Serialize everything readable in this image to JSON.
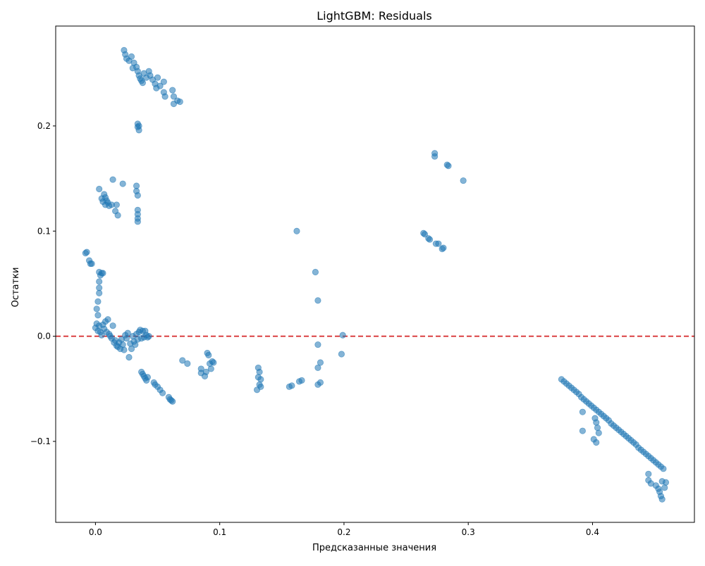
{
  "chart_data": {
    "type": "scatter",
    "title": "LightGBM: Residuals",
    "xlabel": "Предсказанные значения",
    "ylabel": "Остатки",
    "xlim": [
      -0.032,
      0.482
    ],
    "ylim": [
      -0.177,
      0.295
    ],
    "xticks": [
      0.0,
      0.1,
      0.2,
      0.3,
      0.4
    ],
    "xtick_labels": [
      "0.0",
      "0.1",
      "0.2",
      "0.3",
      "0.4"
    ],
    "yticks": [
      -0.1,
      0.0,
      0.1,
      0.2
    ],
    "ytick_labels": [
      "−0.1",
      "0.0",
      "0.1",
      "0.2"
    ],
    "grid": false,
    "reference_line": {
      "y": 0.0,
      "color": "#d62728",
      "style": "dashed"
    },
    "series": [
      {
        "color": "#1f77b4",
        "opacity": 0.55,
        "points": [
          [
            0.023,
            0.272
          ],
          [
            0.024,
            0.268
          ],
          [
            0.025,
            0.264
          ],
          [
            0.027,
            0.262
          ],
          [
            0.029,
            0.266
          ],
          [
            0.031,
            0.26
          ],
          [
            0.033,
            0.256
          ],
          [
            0.034,
            0.252
          ],
          [
            0.035,
            0.248
          ],
          [
            0.036,
            0.245
          ],
          [
            0.037,
            0.243
          ],
          [
            0.039,
            0.25
          ],
          [
            0.041,
            0.246
          ],
          [
            0.043,
            0.252
          ],
          [
            0.044,
            0.248
          ],
          [
            0.046,
            0.244
          ],
          [
            0.048,
            0.24
          ],
          [
            0.049,
            0.236
          ],
          [
            0.05,
            0.246
          ],
          [
            0.052,
            0.238
          ],
          [
            0.055,
            0.242
          ],
          [
            0.055,
            0.232
          ],
          [
            0.056,
            0.228
          ],
          [
            0.062,
            0.234
          ],
          [
            0.063,
            0.228
          ],
          [
            0.063,
            0.221
          ],
          [
            0.066,
            0.224
          ],
          [
            0.068,
            0.223
          ],
          [
            0.03,
            0.255
          ],
          [
            0.038,
            0.241
          ],
          [
            0.034,
            0.202
          ],
          [
            0.034,
            0.199
          ],
          [
            0.035,
            0.196
          ],
          [
            0.035,
            0.2
          ],
          [
            0.003,
            0.14
          ],
          [
            0.005,
            0.131
          ],
          [
            0.006,
            0.128
          ],
          [
            0.007,
            0.135
          ],
          [
            0.008,
            0.132
          ],
          [
            0.008,
            0.125
          ],
          [
            0.009,
            0.129
          ],
          [
            0.01,
            0.127
          ],
          [
            0.011,
            0.124
          ],
          [
            0.013,
            0.125
          ],
          [
            0.014,
            0.149
          ],
          [
            0.017,
            0.125
          ],
          [
            0.016,
            0.119
          ],
          [
            0.018,
            0.115
          ],
          [
            0.022,
            0.145
          ],
          [
            0.033,
            0.143
          ],
          [
            0.033,
            0.138
          ],
          [
            0.034,
            0.134
          ],
          [
            0.034,
            0.12
          ],
          [
            0.034,
            0.116
          ],
          [
            0.034,
            0.112
          ],
          [
            0.034,
            0.109
          ],
          [
            -0.008,
            0.079
          ],
          [
            -0.007,
            0.08
          ],
          [
            -0.005,
            0.072
          ],
          [
            -0.004,
            0.069
          ],
          [
            -0.003,
            0.069
          ],
          [
            0.003,
            0.061
          ],
          [
            0.004,
            0.058
          ],
          [
            0.005,
            0.06
          ],
          [
            0.006,
            0.06
          ],
          [
            0.003,
            0.052
          ],
          [
            0.003,
            0.046
          ],
          [
            0.003,
            0.041
          ],
          [
            0.002,
            0.033
          ],
          [
            0.001,
            0.026
          ],
          [
            0.002,
            0.02
          ],
          [
            0.001,
            0.012
          ],
          [
            0.0,
            0.008
          ],
          [
            0.002,
            0.005
          ],
          [
            0.003,
            0.01
          ],
          [
            0.004,
            0.004
          ],
          [
            0.005,
            0.001
          ],
          [
            0.006,
            0.011
          ],
          [
            0.007,
            0.007
          ],
          [
            0.008,
            0.014
          ],
          [
            0.009,
            0.004
          ],
          [
            0.01,
            0.016
          ],
          [
            0.011,
            0.002
          ],
          [
            0.012,
            0.0
          ],
          [
            0.013,
            -0.002
          ],
          [
            0.014,
            0.01
          ],
          [
            0.015,
            -0.006
          ],
          [
            0.016,
            -0.004
          ],
          [
            0.017,
            -0.009
          ],
          [
            0.018,
            -0.01
          ],
          [
            0.019,
            -0.006
          ],
          [
            0.02,
            -0.012
          ],
          [
            0.021,
            -0.003
          ],
          [
            0.022,
            -0.008
          ],
          [
            0.023,
            -0.013
          ],
          [
            0.024,
            0.001
          ],
          [
            0.025,
            -0.002
          ],
          [
            0.026,
            0.003
          ],
          [
            0.027,
            -0.02
          ],
          [
            0.028,
            -0.007
          ],
          [
            0.029,
            -0.012
          ],
          [
            0.03,
            0.0
          ],
          [
            0.031,
            -0.005
          ],
          [
            0.032,
            -0.008
          ],
          [
            0.033,
            0.002
          ],
          [
            0.034,
            -0.003
          ],
          [
            0.035,
            0.004
          ],
          [
            0.036,
            0.006
          ],
          [
            0.037,
            -0.002
          ],
          [
            0.038,
            0.005
          ],
          [
            0.039,
            -0.001
          ],
          [
            0.04,
            0.005
          ],
          [
            0.041,
            0.001
          ],
          [
            0.042,
            -0.001
          ],
          [
            0.043,
            0.0
          ],
          [
            0.037,
            -0.034
          ],
          [
            0.038,
            -0.036
          ],
          [
            0.039,
            -0.038
          ],
          [
            0.04,
            -0.04
          ],
          [
            0.041,
            -0.042
          ],
          [
            0.042,
            -0.039
          ],
          [
            0.047,
            -0.044
          ],
          [
            0.048,
            -0.046
          ],
          [
            0.05,
            -0.048
          ],
          [
            0.052,
            -0.051
          ],
          [
            0.054,
            -0.054
          ],
          [
            0.059,
            -0.058
          ],
          [
            0.06,
            -0.06
          ],
          [
            0.061,
            -0.061
          ],
          [
            0.062,
            -0.062
          ],
          [
            0.07,
            -0.023
          ],
          [
            0.074,
            -0.026
          ],
          [
            0.085,
            -0.031
          ],
          [
            0.085,
            -0.035
          ],
          [
            0.088,
            -0.038
          ],
          [
            0.089,
            -0.034
          ],
          [
            0.09,
            -0.016
          ],
          [
            0.091,
            -0.018
          ],
          [
            0.092,
            -0.026
          ],
          [
            0.093,
            -0.031
          ],
          [
            0.094,
            -0.024
          ],
          [
            0.095,
            -0.025
          ],
          [
            0.13,
            -0.051
          ],
          [
            0.131,
            -0.03
          ],
          [
            0.131,
            -0.039
          ],
          [
            0.132,
            -0.046
          ],
          [
            0.132,
            -0.034
          ],
          [
            0.133,
            -0.041
          ],
          [
            0.133,
            -0.048
          ],
          [
            0.156,
            -0.048
          ],
          [
            0.158,
            -0.047
          ],
          [
            0.162,
            0.1
          ],
          [
            0.164,
            -0.043
          ],
          [
            0.166,
            -0.042
          ],
          [
            0.177,
            0.061
          ],
          [
            0.179,
            -0.008
          ],
          [
            0.179,
            0.034
          ],
          [
            0.179,
            -0.03
          ],
          [
            0.179,
            -0.046
          ],
          [
            0.181,
            -0.025
          ],
          [
            0.181,
            -0.044
          ],
          [
            0.198,
            -0.017
          ],
          [
            0.199,
            0.001
          ],
          [
            0.264,
            0.098
          ],
          [
            0.265,
            0.097
          ],
          [
            0.268,
            0.093
          ],
          [
            0.269,
            0.092
          ],
          [
            0.273,
            0.174
          ],
          [
            0.273,
            0.171
          ],
          [
            0.274,
            0.088
          ],
          [
            0.276,
            0.088
          ],
          [
            0.279,
            0.083
          ],
          [
            0.28,
            0.084
          ],
          [
            0.283,
            0.163
          ],
          [
            0.284,
            0.162
          ],
          [
            0.296,
            0.148
          ],
          [
            0.375,
            -0.041
          ],
          [
            0.377,
            -0.043
          ],
          [
            0.379,
            -0.045
          ],
          [
            0.381,
            -0.047
          ],
          [
            0.383,
            -0.049
          ],
          [
            0.385,
            -0.051
          ],
          [
            0.387,
            -0.053
          ],
          [
            0.389,
            -0.055
          ],
          [
            0.391,
            -0.058
          ],
          [
            0.393,
            -0.06
          ],
          [
            0.395,
            -0.062
          ],
          [
            0.397,
            -0.064
          ],
          [
            0.399,
            -0.066
          ],
          [
            0.401,
            -0.068
          ],
          [
            0.403,
            -0.07
          ],
          [
            0.405,
            -0.072
          ],
          [
            0.407,
            -0.074
          ],
          [
            0.409,
            -0.076
          ],
          [
            0.411,
            -0.078
          ],
          [
            0.413,
            -0.08
          ],
          [
            0.415,
            -0.083
          ],
          [
            0.417,
            -0.085
          ],
          [
            0.419,
            -0.087
          ],
          [
            0.421,
            -0.089
          ],
          [
            0.423,
            -0.091
          ],
          [
            0.425,
            -0.093
          ],
          [
            0.427,
            -0.095
          ],
          [
            0.429,
            -0.097
          ],
          [
            0.431,
            -0.099
          ],
          [
            0.433,
            -0.101
          ],
          [
            0.435,
            -0.103
          ],
          [
            0.437,
            -0.106
          ],
          [
            0.439,
            -0.108
          ],
          [
            0.441,
            -0.11
          ],
          [
            0.443,
            -0.112
          ],
          [
            0.445,
            -0.114
          ],
          [
            0.447,
            -0.116
          ],
          [
            0.449,
            -0.118
          ],
          [
            0.451,
            -0.12
          ],
          [
            0.453,
            -0.122
          ],
          [
            0.455,
            -0.124
          ],
          [
            0.457,
            -0.126
          ],
          [
            0.392,
            -0.072
          ],
          [
            0.392,
            -0.09
          ],
          [
            0.401,
            -0.098
          ],
          [
            0.403,
            -0.101
          ],
          [
            0.404,
            -0.087
          ],
          [
            0.402,
            -0.078
          ],
          [
            0.403,
            -0.082
          ],
          [
            0.405,
            -0.092
          ],
          [
            0.445,
            -0.131
          ],
          [
            0.445,
            -0.137
          ],
          [
            0.447,
            -0.14
          ],
          [
            0.451,
            -0.142
          ],
          [
            0.453,
            -0.145
          ],
          [
            0.454,
            -0.148
          ],
          [
            0.455,
            -0.152
          ],
          [
            0.456,
            -0.155
          ],
          [
            0.456,
            -0.138
          ],
          [
            0.458,
            -0.144
          ],
          [
            0.459,
            -0.139
          ]
        ]
      }
    ]
  }
}
